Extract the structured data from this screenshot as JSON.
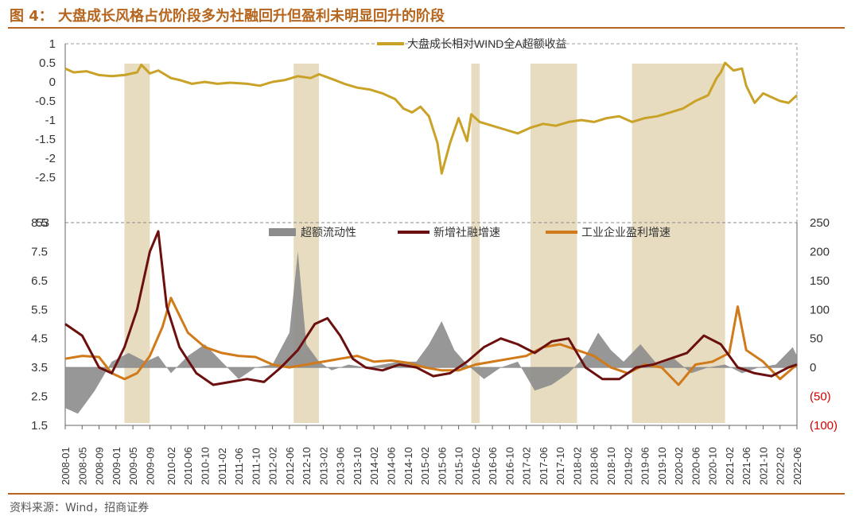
{
  "title": "图 4：  大盘成长风格占优阶段多为社融回升但盈利未明显回升的阶段",
  "source": "资料来源：Wind，招商证券",
  "colors": {
    "accent": "#b5651d",
    "excess": "#c9a227",
    "shade": "#e7dcc0",
    "liquidity": "#8c8c8c",
    "social": "#6b0f0f",
    "profit": "#d07a1a",
    "neg_label": "#d00000"
  },
  "chart_data": [
    {
      "type": "line",
      "legend_placement": "top",
      "ylim": [
        -2.5,
        1
      ],
      "yticks": [
        "1",
        "0.5",
        "0",
        "-0.5",
        "-1",
        "-1.5",
        "-2",
        "-2.5"
      ],
      "series": [
        {
          "name": "大盘成长相对WIND全A超额收益",
          "x": [
            "2008-01",
            "2008-03",
            "2008-06",
            "2008-09",
            "2008-12",
            "2009-03",
            "2009-06",
            "2009-07",
            "2009-09",
            "2009-11",
            "2010-02",
            "2010-04",
            "2010-07",
            "2010-10",
            "2011-01",
            "2011-04",
            "2011-08",
            "2011-11",
            "2012-02",
            "2012-05",
            "2012-08",
            "2012-11",
            "2013-01",
            "2013-04",
            "2013-07",
            "2013-10",
            "2014-01",
            "2014-04",
            "2014-07",
            "2014-09",
            "2014-11",
            "2015-01",
            "2015-03",
            "2015-05",
            "2015-06",
            "2015-08",
            "2015-10",
            "2015-12",
            "2016-01",
            "2016-03",
            "2016-06",
            "2016-09",
            "2016-12",
            "2017-03",
            "2017-06",
            "2017-09",
            "2017-12",
            "2018-03",
            "2018-06",
            "2018-09",
            "2018-12",
            "2019-03",
            "2019-06",
            "2019-09",
            "2019-12",
            "2020-03",
            "2020-06",
            "2020-09",
            "2020-11",
            "2020-12",
            "2021-01",
            "2021-03",
            "2021-05",
            "2021-06",
            "2021-08",
            "2021-10",
            "2021-12",
            "2022-02",
            "2022-04",
            "2022-06"
          ],
          "values": [
            0.35,
            0.25,
            0.28,
            0.18,
            0.15,
            0.18,
            0.25,
            0.45,
            0.22,
            0.3,
            0.1,
            0.05,
            -0.05,
            0.0,
            -0.05,
            -0.02,
            -0.05,
            -0.1,
            0.0,
            0.05,
            0.15,
            0.1,
            0.2,
            0.08,
            -0.05,
            -0.15,
            -0.2,
            -0.3,
            -0.45,
            -0.7,
            -0.8,
            -0.65,
            -0.9,
            -1.6,
            -2.4,
            -1.6,
            -0.95,
            -1.55,
            -0.85,
            -1.05,
            -1.15,
            -1.25,
            -1.35,
            -1.2,
            -1.1,
            -1.15,
            -1.05,
            -1.0,
            -1.05,
            -0.95,
            -0.9,
            -1.05,
            -0.95,
            -0.9,
            -0.8,
            -0.7,
            -0.5,
            -0.35,
            0.1,
            0.25,
            0.5,
            0.3,
            0.35,
            -0.1,
            -0.55,
            -0.3,
            -0.4,
            -0.5,
            -0.55,
            -0.35
          ]
        }
      ]
    },
    {
      "type": "line",
      "legend_placement": "top",
      "ylim_left": [
        1.5,
        8.5
      ],
      "ylim_right": [
        -100,
        250
      ],
      "yticks_left": [
        "8.5",
        "7.5",
        "6.5",
        "5.5",
        "4.5",
        "3.5",
        "2.5",
        "1.5"
      ],
      "yticks_right": [
        "250",
        "200",
        "150",
        "100",
        "50",
        "0",
        "(50)",
        "(100)"
      ],
      "x_ticks": [
        "2008-01",
        "2008-05",
        "2008-09",
        "2009-01",
        "2009-05",
        "2009-09",
        "2010-02",
        "2010-06",
        "2010-10",
        "2011-02",
        "2011-06",
        "2011-10",
        "2012-02",
        "2012-06",
        "2012-10",
        "2013-02",
        "2013-06",
        "2013-10",
        "2014-02",
        "2014-06",
        "2014-10",
        "2015-02",
        "2015-06",
        "2015-10",
        "2016-02",
        "2016-06",
        "2016-10",
        "2017-02",
        "2017-06",
        "2017-10",
        "2018-02",
        "2018-06",
        "2018-10",
        "2019-02",
        "2019-06",
        "2019-10",
        "2020-02",
        "2020-06",
        "2020-10",
        "2021-02",
        "2021-06",
        "2021-10",
        "2022-02",
        "2022-06"
      ],
      "top_left_tick": "53",
      "series": [
        {
          "name": "超额流动性",
          "axis": "right",
          "type": "area",
          "x": [
            "2008-01",
            "2008-04",
            "2008-08",
            "2008-12",
            "2009-04",
            "2009-08",
            "2009-11",
            "2010-02",
            "2010-06",
            "2010-10",
            "2011-02",
            "2011-06",
            "2011-10",
            "2012-02",
            "2012-06",
            "2012-08",
            "2012-10",
            "2013-01",
            "2013-04",
            "2013-08",
            "2013-12",
            "2014-04",
            "2014-08",
            "2014-12",
            "2015-03",
            "2015-06",
            "2015-09",
            "2015-12",
            "2016-04",
            "2016-08",
            "2016-12",
            "2017-04",
            "2017-08",
            "2017-12",
            "2018-04",
            "2018-07",
            "2018-10",
            "2019-01",
            "2019-05",
            "2019-09",
            "2020-01",
            "2020-05",
            "2020-09",
            "2021-01",
            "2021-05",
            "2021-09",
            "2022-01",
            "2022-05",
            "2022-06"
          ],
          "values": [
            -70,
            -80,
            -40,
            10,
            25,
            10,
            20,
            -10,
            20,
            40,
            10,
            -20,
            0,
            5,
            60,
            200,
            40,
            10,
            -5,
            5,
            0,
            5,
            10,
            10,
            40,
            80,
            30,
            5,
            -20,
            0,
            10,
            -40,
            -30,
            -10,
            20,
            60,
            30,
            10,
            40,
            5,
            15,
            -10,
            0,
            5,
            -10,
            0,
            5,
            35,
            20
          ]
        },
        {
          "name": "新增社融增速",
          "axis": "left",
          "x": [
            "2008-01",
            "2008-05",
            "2008-09",
            "2008-12",
            "2009-03",
            "2009-06",
            "2009-09",
            "2009-11",
            "2010-01",
            "2010-04",
            "2010-08",
            "2010-12",
            "2011-04",
            "2011-08",
            "2011-12",
            "2012-04",
            "2012-08",
            "2012-12",
            "2013-03",
            "2013-06",
            "2013-09",
            "2013-12",
            "2014-04",
            "2014-08",
            "2014-12",
            "2015-04",
            "2015-08",
            "2015-12",
            "2016-04",
            "2016-08",
            "2016-12",
            "2017-04",
            "2017-08",
            "2017-12",
            "2018-04",
            "2018-08",
            "2018-12",
            "2019-04",
            "2019-08",
            "2019-12",
            "2020-04",
            "2020-08",
            "2020-12",
            "2021-04",
            "2021-08",
            "2021-12",
            "2022-04",
            "2022-06"
          ],
          "values": [
            5.0,
            4.6,
            3.5,
            3.3,
            4.2,
            5.5,
            7.5,
            8.2,
            5.6,
            4.2,
            3.3,
            2.9,
            3.0,
            3.1,
            3.0,
            3.5,
            4.1,
            5.0,
            5.2,
            4.6,
            3.8,
            3.5,
            3.4,
            3.6,
            3.5,
            3.2,
            3.3,
            3.7,
            4.2,
            4.5,
            4.3,
            4.0,
            4.4,
            4.5,
            3.5,
            3.1,
            3.1,
            3.5,
            3.6,
            3.8,
            4.0,
            4.6,
            4.3,
            3.5,
            3.3,
            3.2,
            3.5,
            3.6
          ]
        },
        {
          "name": "工业企业盈利增速",
          "axis": "right",
          "x": [
            "2008-01",
            "2008-05",
            "2008-09",
            "2008-12",
            "2009-03",
            "2009-06",
            "2009-09",
            "2009-12",
            "2010-02",
            "2010-06",
            "2010-10",
            "2011-02",
            "2011-06",
            "2011-10",
            "2012-02",
            "2012-06",
            "2012-10",
            "2013-02",
            "2013-06",
            "2013-10",
            "2014-02",
            "2014-06",
            "2014-10",
            "2015-02",
            "2015-06",
            "2015-10",
            "2016-02",
            "2016-06",
            "2016-10",
            "2017-02",
            "2017-06",
            "2017-10",
            "2018-02",
            "2018-06",
            "2018-10",
            "2019-02",
            "2019-06",
            "2019-10",
            "2020-02",
            "2020-06",
            "2020-10",
            "2021-02",
            "2021-04",
            "2021-06",
            "2021-10",
            "2022-02",
            "2022-06"
          ],
          "values": [
            15,
            20,
            18,
            -10,
            -20,
            -10,
            20,
            70,
            120,
            60,
            35,
            25,
            20,
            18,
            5,
            0,
            5,
            10,
            15,
            20,
            10,
            12,
            8,
            0,
            -5,
            -5,
            5,
            10,
            15,
            20,
            35,
            40,
            30,
            20,
            0,
            -10,
            5,
            0,
            -30,
            5,
            10,
            25,
            105,
            30,
            10,
            -20,
            5
          ]
        }
      ]
    }
  ]
}
